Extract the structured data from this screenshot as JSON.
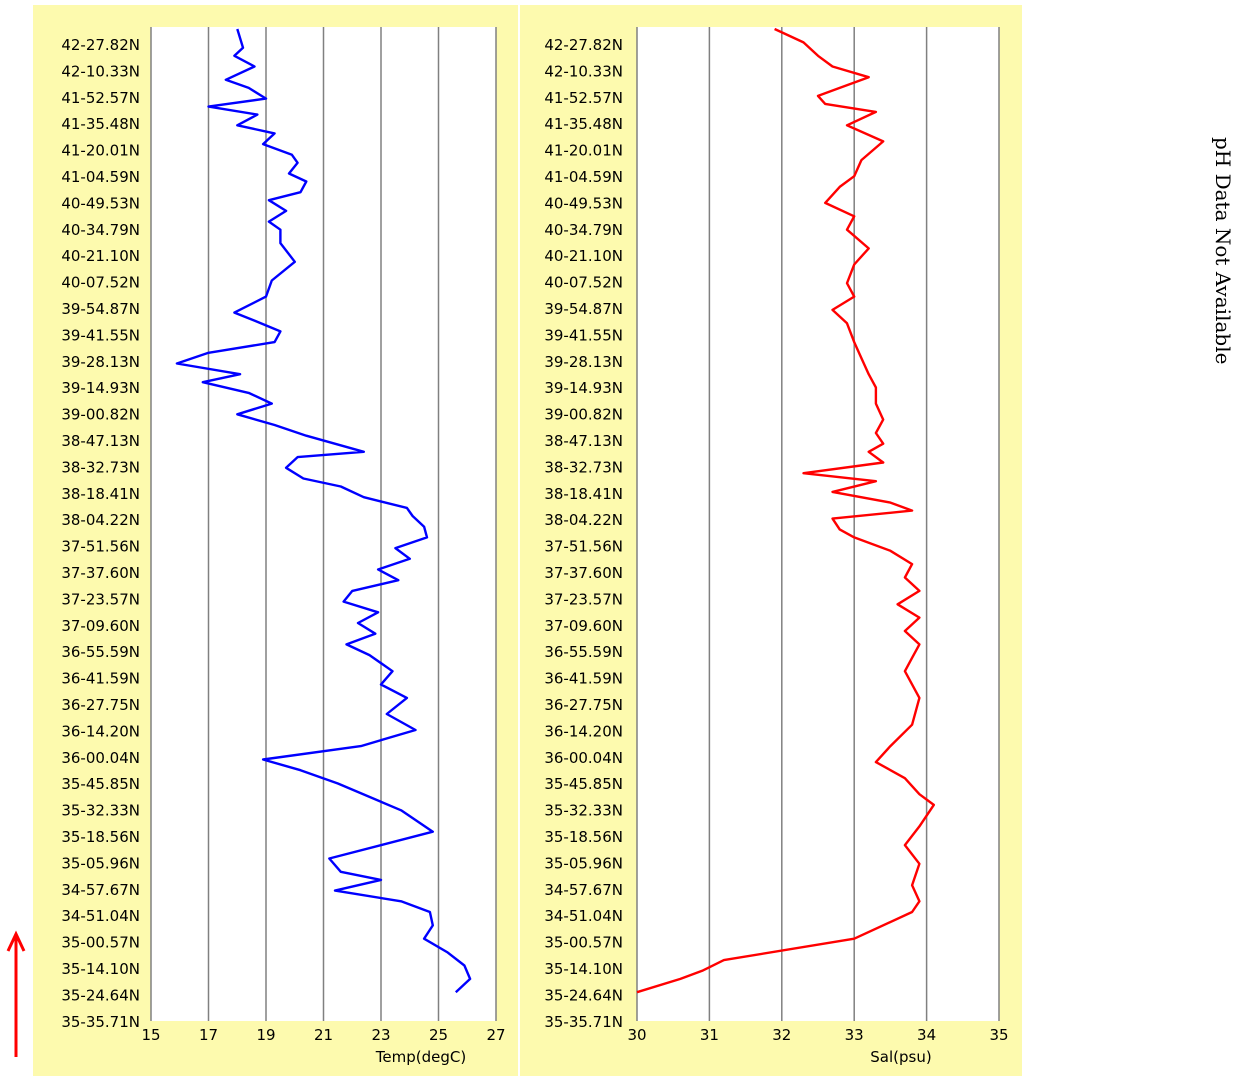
{
  "ph_note": "pH Data Not Available",
  "colors": {
    "panel_background": "#fdfaae",
    "grid": "#808080",
    "temperature_line": "#0000ff",
    "salinity_line": "#ff0000",
    "arrow": "#ff0000"
  },
  "icons": [
    "up-arrow-icon"
  ],
  "latitude_labels": [
    "42-27.82N",
    "42-10.33N",
    "41-52.57N",
    "41-35.48N",
    "41-20.01N",
    "41-04.59N",
    "40-49.53N",
    "40-34.79N",
    "40-21.10N",
    "40-07.52N",
    "39-54.87N",
    "39-41.55N",
    "39-28.13N",
    "39-14.93N",
    "39-00.82N",
    "38-47.13N",
    "38-32.73N",
    "38-18.41N",
    "38-04.22N",
    "37-51.56N",
    "37-37.60N",
    "37-23.57N",
    "37-09.60N",
    "36-55.59N",
    "36-41.59N",
    "36-27.75N",
    "36-14.20N",
    "36-00.04N",
    "35-45.85N",
    "35-32.33N",
    "35-18.56N",
    "35-05.96N",
    "34-57.67N",
    "34-51.04N",
    "35-00.57N",
    "35-14.10N",
    "35-24.64N",
    "35-35.71N"
  ],
  "chart_data": [
    {
      "type": "line",
      "xlabel": "Temp(degC)",
      "xlim": [
        15,
        27
      ],
      "xticks": [
        15,
        17,
        19,
        21,
        23,
        25,
        27
      ],
      "grid": "vertical",
      "series": [
        {
          "color": "#0000ff",
          "x": [
            18.0,
            18.2,
            17.9,
            18.6,
            17.6,
            18.4,
            19.0,
            17.0,
            18.7,
            18.0,
            19.3,
            18.9,
            19.9,
            20.1,
            19.8,
            20.4,
            20.2,
            19.1,
            19.7,
            19.1,
            19.5,
            19.5,
            20.0,
            19.2,
            19.0,
            17.9,
            18.6,
            19.5,
            19.3,
            17.0,
            15.9,
            18.1,
            16.8,
            18.4,
            19.2,
            18.0,
            19.3,
            20.4,
            22.4,
            20.1,
            19.7,
            20.3,
            21.6,
            22.4,
            23.9,
            24.1,
            24.5,
            24.6,
            23.5,
            24.0,
            22.9,
            23.6,
            22.0,
            21.7,
            22.9,
            22.2,
            22.8,
            21.8,
            22.6,
            23.4,
            23.0,
            23.9,
            23.2,
            24.2,
            22.3,
            18.9,
            20.2,
            21.5,
            23.7,
            24.8,
            21.2,
            21.6,
            23.0,
            21.4,
            23.7,
            24.7,
            24.8,
            24.5,
            25.3,
            25.9,
            26.1,
            25.6
          ],
          "lat_index": [
            0,
            0.7,
            1.0,
            1.4,
            1.9,
            2.2,
            2.6,
            2.9,
            3.2,
            3.6,
            3.9,
            4.3,
            4.7,
            5.0,
            5.4,
            5.7,
            6.1,
            6.4,
            6.8,
            7.2,
            7.5,
            8.0,
            8.7,
            9.4,
            10.0,
            10.6,
            10.9,
            11.3,
            11.7,
            12.1,
            12.5,
            12.9,
            13.2,
            13.6,
            14.0,
            14.4,
            14.8,
            15.2,
            15.8,
            16.0,
            16.4,
            16.8,
            17.1,
            17.5,
            17.9,
            18.2,
            18.6,
            19.0,
            19.4,
            19.8,
            20.2,
            20.6,
            21.0,
            21.4,
            21.8,
            22.2,
            22.6,
            23.0,
            23.4,
            24.0,
            24.5,
            25.0,
            25.6,
            26.2,
            26.8,
            27.3,
            27.7,
            28.2,
            29.2,
            30.0,
            31.0,
            31.5,
            31.8,
            32.2,
            32.6,
            33.0,
            33.5,
            34.0,
            34.5,
            35.0,
            35.5,
            36.0
          ]
        }
      ]
    },
    {
      "type": "line",
      "xlabel": "Sal(psu)",
      "xlim": [
        30,
        35
      ],
      "xticks": [
        30,
        31,
        32,
        33,
        34,
        35
      ],
      "grid": "vertical",
      "series": [
        {
          "color": "#ff0000",
          "x": [
            31.9,
            32.3,
            32.5,
            32.7,
            33.2,
            32.8,
            32.5,
            32.6,
            33.3,
            32.9,
            33.4,
            33.1,
            33.0,
            32.8,
            32.6,
            33.0,
            32.9,
            33.2,
            33.0,
            32.9,
            33.0,
            32.7,
            32.9,
            33.0,
            33.1,
            33.2,
            33.3,
            33.3,
            33.4,
            33.3,
            33.4,
            33.2,
            33.4,
            32.3,
            33.3,
            32.7,
            33.5,
            33.8,
            32.7,
            32.8,
            33.0,
            33.5,
            33.8,
            33.7,
            33.9,
            33.6,
            33.9,
            33.7,
            33.9,
            33.8,
            33.7,
            33.9,
            33.8,
            33.5,
            33.3,
            33.7,
            33.9,
            34.1,
            33.9,
            33.7,
            33.9,
            33.8,
            33.9,
            33.8,
            33.0,
            31.2,
            30.9,
            30.6,
            30.0
          ],
          "lat_index": [
            0,
            0.5,
            1.0,
            1.4,
            1.8,
            2.2,
            2.5,
            2.8,
            3.1,
            3.6,
            4.2,
            4.9,
            5.5,
            5.9,
            6.5,
            7.0,
            7.5,
            8.2,
            8.8,
            9.5,
            10.0,
            10.5,
            11.0,
            11.7,
            12.3,
            12.9,
            13.4,
            14.0,
            14.6,
            15.1,
            15.5,
            15.8,
            16.2,
            16.6,
            16.9,
            17.3,
            17.7,
            18.0,
            18.3,
            18.7,
            19.0,
            19.5,
            20.0,
            20.5,
            21.0,
            21.5,
            22.0,
            22.5,
            23.0,
            23.5,
            24.0,
            25.0,
            26.0,
            26.8,
            27.4,
            28.0,
            28.6,
            29.0,
            29.8,
            30.5,
            31.2,
            32.0,
            32.6,
            33.0,
            34.0,
            34.8,
            35.2,
            35.5,
            36.0
          ]
        }
      ]
    }
  ]
}
